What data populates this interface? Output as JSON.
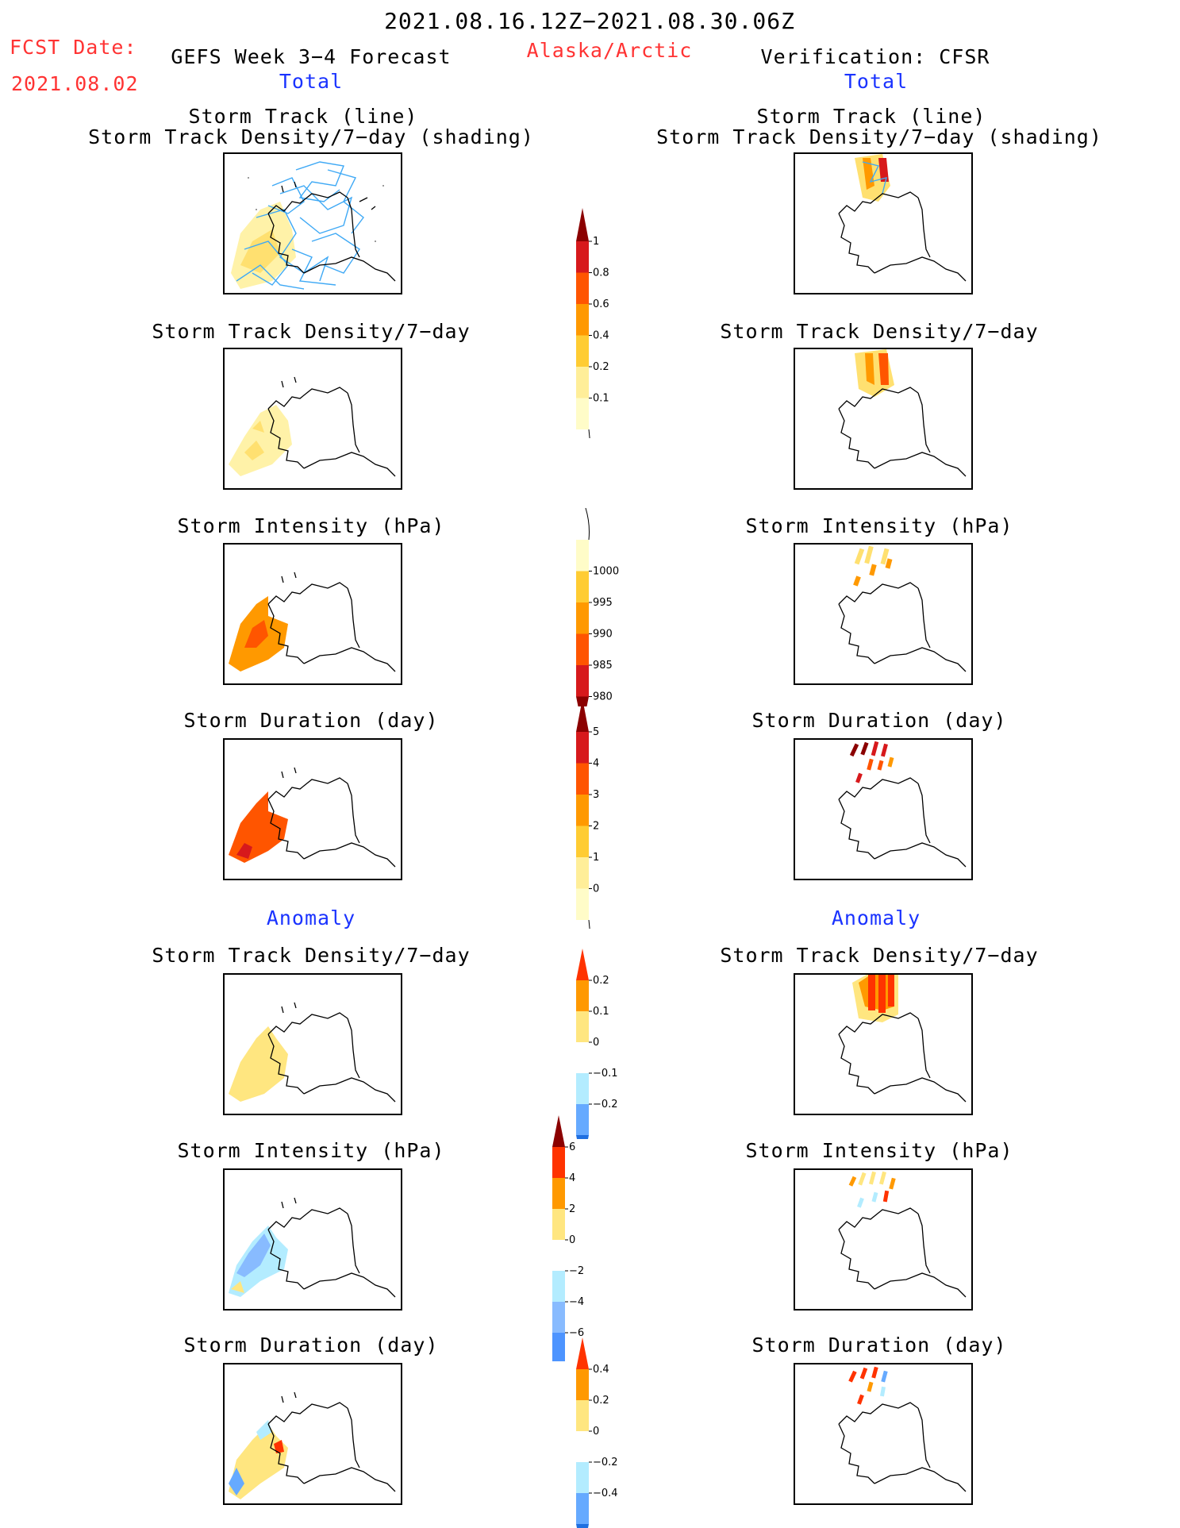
{
  "header": {
    "period": "2021.08.16.12Z−2021.08.30.06Z",
    "fcst_label": "FCST Date:",
    "fcst_date": "2021.08.02",
    "forecast_title": "GEFS Week 3−4 Forecast",
    "region": "Alaska/Arctic",
    "verification": "Verification: CFSR"
  },
  "sections": {
    "total": "Total",
    "anomaly": "Anomaly"
  },
  "panel_titles": {
    "track_line": "Storm Track (line)",
    "track_density_shading": "Storm Track Density/7−day (shading)",
    "track_density": "Storm Track Density/7−day",
    "intensity": "Storm Intensity (hPa)",
    "duration": "Storm Duration (day)"
  },
  "colorbars": {
    "density": {
      "labels": [
        "1",
        "0.8",
        "0.6",
        "0.4",
        "0.2",
        "0.1"
      ],
      "colors": [
        "#8b0000",
        "#d7191c",
        "#ff5500",
        "#ff9900",
        "#ffcc33",
        "#ffee99",
        "#fffcc8"
      ]
    },
    "intensity": {
      "labels": [
        "1000",
        "995",
        "990",
        "985",
        "980"
      ],
      "colors": [
        "#fffcc8",
        "#ffcc33",
        "#ff9900",
        "#ff5500",
        "#d7191c",
        "#8b0000"
      ]
    },
    "duration": {
      "labels": [
        "5",
        "4",
        "3",
        "2",
        "1",
        "0"
      ],
      "colors": [
        "#8b0000",
        "#d7191c",
        "#ff5500",
        "#ff9900",
        "#ffcc33",
        "#ffee99",
        "#fffcc8"
      ]
    },
    "density_anom": {
      "labels": [
        "0.2",
        "0.1",
        "0",
        "−0.1",
        "−0.2"
      ],
      "colors": [
        "#ff3300",
        "#ff9900",
        "#ffe680",
        "#ffffff",
        "#b3ecff",
        "#66aaff",
        "#1f6fe0"
      ]
    },
    "intensity_anom": {
      "labels": [
        "6",
        "4",
        "2",
        "0",
        "−2",
        "−4",
        "−6"
      ],
      "colors": [
        "#8b0000",
        "#ff3300",
        "#ff9900",
        "#ffe680",
        "#ffffff",
        "#b3ecff",
        "#88bbff",
        "#4d94ff",
        "#1f6fe0"
      ]
    },
    "duration_anom": {
      "labels": [
        "0.4",
        "0.2",
        "0",
        "−0.2",
        "−0.4"
      ],
      "colors": [
        "#ff3300",
        "#ff9900",
        "#ffe680",
        "#ffffff",
        "#b3ecff",
        "#66aaff",
        "#1f6fe0"
      ]
    }
  }
}
